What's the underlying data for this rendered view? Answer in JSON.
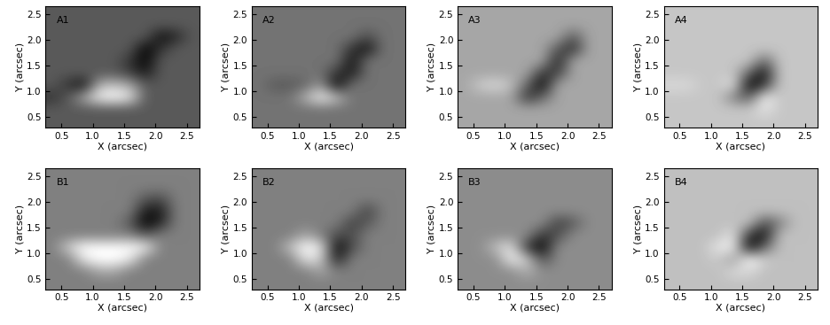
{
  "chart_data": [
    {
      "type": "heatmap",
      "title": "A1",
      "x_label": "X (arcsec)",
      "y_label": "Y (arcsec)",
      "xlim": [
        0.25,
        2.7
      ],
      "ylim": [
        0.3,
        2.65
      ],
      "xticks": [
        0.5,
        1.0,
        1.5,
        2.0,
        2.5
      ],
      "yticks": [
        0.5,
        1.0,
        1.5,
        2.0,
        2.5
      ],
      "color": "gray",
      "color_range": [
        -1,
        1
      ],
      "cells": [
        [
          -0.3,
          -0.3,
          -0.3,
          -0.3,
          -0.3,
          -0.3,
          -0.3,
          -0.3,
          -0.3,
          -0.3
        ],
        [
          -0.3,
          -0.3,
          -0.3,
          -0.3,
          -0.3,
          -0.3,
          -0.3,
          -0.3,
          -0.3,
          -0.3
        ],
        [
          -0.3,
          -0.3,
          -0.3,
          -0.3,
          -0.3,
          -0.3,
          -0.3,
          -0.9,
          -0.7,
          -0.3
        ],
        [
          -0.3,
          -0.3,
          -0.3,
          -0.3,
          -0.3,
          -0.3,
          -1,
          -0.6,
          -0.3,
          -0.3
        ],
        [
          -0.3,
          -0.3,
          -0.3,
          -0.3,
          -0.3,
          -0.6,
          -1,
          -0.3,
          -0.3,
          -0.3
        ],
        [
          -0.3,
          -0.3,
          -0.3,
          -0.3,
          -0.3,
          -0.5,
          -0.8,
          -0.3,
          -0.3,
          -0.3
        ],
        [
          -0.3,
          -0.6,
          -0.9,
          0.4,
          0.5,
          0.3,
          -0.3,
          -0.3,
          -0.3,
          -0.3
        ],
        [
          -0.6,
          -0.3,
          0.3,
          0.9,
          1,
          0.8,
          -0.3,
          -0.3,
          -0.3,
          -0.3
        ],
        [
          -0.3,
          -0.3,
          -0.3,
          -0.3,
          -0.3,
          -0.3,
          -0.3,
          -0.3,
          -0.3,
          -0.3
        ],
        [
          -0.3,
          -0.3,
          -0.3,
          -0.3,
          -0.3,
          -0.3,
          -0.3,
          -0.3,
          -0.3,
          -0.3
        ]
      ]
    },
    {
      "type": "heatmap",
      "title": "A2",
      "x_label": "X (arcsec)",
      "y_label": "Y (arcsec)",
      "xlim": [
        0.25,
        2.7
      ],
      "ylim": [
        0.3,
        2.65
      ],
      "xticks": [
        0.5,
        1.0,
        1.5,
        2.0,
        2.5
      ],
      "yticks": [
        0.5,
        1.0,
        1.5,
        2.0,
        2.5
      ],
      "color": "gray",
      "color_range": [
        -1,
        1
      ],
      "cells": [
        [
          -0.1,
          -0.1,
          -0.1,
          -0.1,
          -0.1,
          -0.1,
          -0.1,
          -0.1,
          -0.1,
          -0.1
        ],
        [
          -0.1,
          -0.1,
          -0.1,
          -0.1,
          -0.1,
          -0.1,
          -0.1,
          -0.1,
          -0.1,
          -0.1
        ],
        [
          -0.1,
          -0.1,
          -0.1,
          -0.1,
          -0.1,
          -0.1,
          -0.1,
          -0.4,
          -0.1,
          -0.1
        ],
        [
          -0.1,
          -0.1,
          -0.1,
          -0.1,
          -0.1,
          -0.1,
          -0.6,
          -0.9,
          -0.1,
          -0.1
        ],
        [
          -0.1,
          -0.1,
          -0.1,
          -0.1,
          -0.1,
          -0.1,
          -0.9,
          -0.1,
          -0.1,
          -0.1
        ],
        [
          -0.1,
          -0.1,
          -0.1,
          -0.1,
          -0.1,
          -0.6,
          -0.8,
          -0.1,
          -0.1,
          -0.1
        ],
        [
          -0.1,
          -0.3,
          -0.3,
          -0.2,
          0.2,
          -1,
          -0.1,
          -0.1,
          -0.1,
          -0.1
        ],
        [
          -0.1,
          -0.1,
          -0.1,
          0.4,
          0.9,
          0.5,
          -0.1,
          -0.1,
          -0.1,
          -0.1
        ],
        [
          -0.1,
          -0.1,
          -0.1,
          -0.1,
          -0.1,
          -0.1,
          -0.1,
          -0.1,
          -0.1,
          -0.1
        ],
        [
          -0.1,
          -0.1,
          -0.1,
          -0.1,
          -0.1,
          -0.1,
          -0.1,
          -0.1,
          -0.1,
          -0.1
        ]
      ]
    },
    {
      "type": "heatmap",
      "title": "A3",
      "x_label": "X (arcsec)",
      "y_label": "Y (arcsec)",
      "xlim": [
        0.25,
        2.7
      ],
      "ylim": [
        0.3,
        2.65
      ],
      "xticks": [
        0.5,
        1.0,
        1.5,
        2.0,
        2.5
      ],
      "yticks": [
        0.5,
        1.0,
        1.5,
        2.0,
        2.5
      ],
      "color": "gray",
      "color_range": [
        -1,
        1
      ],
      "cells": [
        [
          0.3,
          0.3,
          0.3,
          0.3,
          0.3,
          0.3,
          0.3,
          0.3,
          0.3,
          0.3
        ],
        [
          0.3,
          0.3,
          0.3,
          0.3,
          0.3,
          0.3,
          0.3,
          0.3,
          0.3,
          0.3
        ],
        [
          0.3,
          0.3,
          0.3,
          0.3,
          0.3,
          0.3,
          0.3,
          -0.3,
          0.3,
          0.3
        ],
        [
          0.3,
          0.3,
          0.3,
          0.3,
          0.3,
          0.3,
          -0.3,
          -0.7,
          0.3,
          0.3
        ],
        [
          0.3,
          0.3,
          0.3,
          0.3,
          0.3,
          0.3,
          -0.8,
          0.3,
          0.3,
          0.3
        ],
        [
          0.3,
          0.3,
          0.3,
          0.3,
          0.3,
          -0.6,
          -0.5,
          0.3,
          0.3,
          0.3
        ],
        [
          0.3,
          0.6,
          0.7,
          0.5,
          -0.2,
          -1,
          0.3,
          0.3,
          0.3,
          0.3
        ],
        [
          0.3,
          0.3,
          0.3,
          0.3,
          -0.6,
          -0.2,
          0.3,
          0.3,
          0.3,
          0.3
        ],
        [
          0.3,
          0.3,
          0.3,
          0.3,
          0.3,
          0.3,
          0.3,
          0.3,
          0.3,
          0.3
        ],
        [
          0.3,
          0.3,
          0.3,
          0.3,
          0.3,
          0.3,
          0.3,
          0.3,
          0.3,
          0.3
        ]
      ]
    },
    {
      "type": "heatmap",
      "title": "A4",
      "x_label": "X (arcsec)",
      "y_label": "Y (arcsec)",
      "xlim": [
        0.25,
        2.7
      ],
      "ylim": [
        0.3,
        2.65
      ],
      "xticks": [
        0.5,
        1.0,
        1.5,
        2.0,
        2.5
      ],
      "yticks": [
        0.5,
        1.0,
        1.5,
        2.0,
        2.5
      ],
      "color": "gray",
      "color_range": [
        -1,
        1
      ],
      "cells": [
        [
          0.55,
          0.55,
          0.55,
          0.55,
          0.55,
          0.55,
          0.55,
          0.55,
          0.55,
          0.55
        ],
        [
          0.55,
          0.55,
          0.55,
          0.55,
          0.55,
          0.55,
          0.55,
          0.55,
          0.55,
          0.55
        ],
        [
          0.55,
          0.55,
          0.55,
          0.55,
          0.55,
          0.55,
          0.55,
          0.55,
          0.55,
          0.55
        ],
        [
          0.55,
          0.55,
          0.55,
          0.55,
          0.55,
          0.55,
          0.55,
          0.55,
          0.55,
          0.55
        ],
        [
          0.55,
          0.55,
          0.55,
          0.55,
          0.55,
          0.55,
          -0.2,
          0.55,
          0.55,
          0.55
        ],
        [
          0.55,
          0.55,
          0.55,
          0.55,
          0.55,
          -0.2,
          -0.9,
          0.55,
          0.55,
          0.55
        ],
        [
          0.7,
          0.7,
          0.55,
          0.55,
          0.8,
          -1,
          -0.6,
          0.55,
          0.55,
          0.55
        ],
        [
          0.55,
          0.55,
          0.55,
          0.55,
          0.0,
          -0.3,
          0.9,
          0.55,
          0.55,
          0.55
        ],
        [
          0.55,
          0.55,
          0.55,
          0.55,
          0.55,
          0.55,
          0.8,
          0.55,
          0.55,
          0.55
        ],
        [
          0.55,
          0.55,
          0.55,
          0.55,
          0.55,
          0.55,
          0.55,
          0.55,
          0.55,
          0.55
        ]
      ]
    },
    {
      "type": "heatmap",
      "title": "B1",
      "x_label": "X (arcsec)",
      "y_label": "Y (arcsec)",
      "xlim": [
        0.25,
        2.7
      ],
      "ylim": [
        0.3,
        2.65
      ],
      "xticks": [
        0.5,
        1.0,
        1.5,
        2.0,
        2.5
      ],
      "yticks": [
        0.5,
        1.0,
        1.5,
        2.0,
        2.5
      ],
      "color": "gray",
      "color_range": [
        -1,
        1
      ],
      "cells": [
        [
          0,
          0,
          0,
          0,
          0,
          0,
          0,
          0,
          0,
          0
        ],
        [
          0,
          0,
          0,
          0,
          0,
          0,
          0,
          0,
          0,
          0
        ],
        [
          0,
          0,
          0,
          0,
          0,
          0,
          -0.3,
          -0.4,
          0,
          0
        ],
        [
          0,
          0,
          0,
          0,
          0,
          0,
          -0.8,
          -0.8,
          0,
          0
        ],
        [
          0,
          0,
          0,
          0,
          0,
          -0.3,
          -1,
          -0.7,
          0,
          0
        ],
        [
          0,
          0,
          0,
          0,
          0,
          0,
          -0.3,
          0,
          0,
          0
        ],
        [
          0,
          0.6,
          1,
          1,
          1,
          1,
          0.9,
          0,
          0,
          0
        ],
        [
          0,
          0,
          0.8,
          1,
          1,
          0.8,
          0,
          0,
          0,
          0
        ],
        [
          0,
          0,
          0,
          0.3,
          0.3,
          0,
          0,
          0,
          0,
          0
        ],
        [
          0,
          0,
          0,
          0,
          0,
          0,
          0,
          0,
          0,
          0
        ]
      ]
    },
    {
      "type": "heatmap",
      "title": "B2",
      "x_label": "X (arcsec)",
      "y_label": "Y (arcsec)",
      "xlim": [
        0.25,
        2.7
      ],
      "ylim": [
        0.3,
        2.65
      ],
      "xticks": [
        0.5,
        1.0,
        1.5,
        2.0,
        2.5
      ],
      "yticks": [
        0.5,
        1.0,
        1.5,
        2.0,
        2.5
      ],
      "color": "gray",
      "color_range": [
        -1,
        1
      ],
      "cells": [
        [
          0,
          0,
          0,
          0,
          0,
          0,
          0,
          0,
          0,
          0
        ],
        [
          0,
          0,
          0,
          0,
          0,
          0,
          0,
          0,
          0,
          0
        ],
        [
          0,
          0,
          0,
          0,
          0,
          0,
          0,
          0,
          0,
          0
        ],
        [
          0,
          0,
          0,
          0,
          0,
          0,
          0,
          -0.5,
          0,
          0
        ],
        [
          0,
          0,
          0,
          0,
          0,
          0,
          -0.5,
          -0.3,
          0,
          0
        ],
        [
          0,
          0,
          0,
          0.3,
          0,
          -0.4,
          -0.4,
          0,
          0,
          0
        ],
        [
          0,
          0,
          0.5,
          1,
          0.8,
          -1,
          -0.4,
          0,
          0,
          0
        ],
        [
          0,
          0,
          0,
          0.8,
          0.6,
          -0.8,
          0,
          0,
          0,
          0
        ],
        [
          0,
          0,
          0,
          0,
          0.3,
          0,
          0,
          0,
          0,
          0
        ],
        [
          0,
          0,
          0,
          0,
          0,
          0,
          0,
          0,
          0,
          0
        ]
      ]
    },
    {
      "type": "heatmap",
      "title": "B3",
      "x_label": "X (arcsec)",
      "y_label": "Y (arcsec)",
      "xlim": [
        0.25,
        2.7
      ],
      "ylim": [
        0.3,
        2.65
      ],
      "xticks": [
        0.5,
        1.0,
        1.5,
        2.0,
        2.5
      ],
      "yticks": [
        0.5,
        1.0,
        1.5,
        2.0,
        2.5
      ],
      "color": "gray",
      "color_range": [
        -1,
        1
      ],
      "cells": [
        [
          0.1,
          0.1,
          0.1,
          0.1,
          0.1,
          0.1,
          0.1,
          0.1,
          0.1,
          0.1
        ],
        [
          0.1,
          0.1,
          0.1,
          0.1,
          0.1,
          0.1,
          0.1,
          0.1,
          0.1,
          0.1
        ],
        [
          0.1,
          0.1,
          0.1,
          0.1,
          0.1,
          0.1,
          0.1,
          0.1,
          0.1,
          0.1
        ],
        [
          0.1,
          0.1,
          0.1,
          0.1,
          0.1,
          0.1,
          0.1,
          0.1,
          0.1,
          0.1
        ],
        [
          0.1,
          0.1,
          0.1,
          0.1,
          0.1,
          0.1,
          -0.5,
          -0.3,
          0.1,
          0.1
        ],
        [
          0.1,
          0.1,
          0.1,
          0.1,
          0.1,
          -0.6,
          -0.4,
          0.1,
          0.1,
          0.1
        ],
        [
          0.1,
          0.1,
          0.5,
          0.8,
          -0.6,
          -1,
          0.1,
          0.1,
          0.1,
          0.1
        ],
        [
          0.1,
          0.1,
          0.1,
          0.9,
          0.6,
          -0.4,
          0.1,
          0.1,
          0.1,
          0.1
        ],
        [
          0.1,
          0.1,
          0.1,
          0.1,
          0.4,
          0.1,
          0.1,
          0.1,
          0.1,
          0.1
        ],
        [
          0.1,
          0.1,
          0.1,
          0.1,
          0.1,
          0.1,
          0.1,
          0.1,
          0.1,
          0.1
        ]
      ]
    },
    {
      "type": "heatmap",
      "title": "B4",
      "x_label": "X (arcsec)",
      "y_label": "Y (arcsec)",
      "xlim": [
        0.25,
        2.7
      ],
      "ylim": [
        0.3,
        2.65
      ],
      "xticks": [
        0.5,
        1.0,
        1.5,
        2.0,
        2.5
      ],
      "yticks": [
        0.5,
        1.0,
        1.5,
        2.0,
        2.5
      ],
      "color": "gray",
      "color_range": [
        -1,
        1
      ],
      "cells": [
        [
          0.5,
          0.5,
          0.5,
          0.5,
          0.5,
          0.5,
          0.5,
          0.5,
          0.5,
          0.5
        ],
        [
          0.5,
          0.5,
          0.5,
          0.5,
          0.5,
          0.5,
          0.5,
          0.5,
          0.5,
          0.5
        ],
        [
          0.5,
          0.5,
          0.5,
          0.5,
          0.5,
          0.5,
          0.5,
          0.5,
          0.5,
          0.5
        ],
        [
          0.5,
          0.5,
          0.5,
          0.5,
          0.5,
          0.5,
          0.5,
          0.5,
          0.5,
          0.5
        ],
        [
          0.5,
          0.5,
          0.5,
          0.5,
          0.5,
          0.5,
          -0.4,
          0.0,
          0.5,
          0.5
        ],
        [
          0.5,
          0.5,
          0.5,
          0.5,
          0.8,
          -0.6,
          -0.9,
          0.5,
          0.5,
          0.5
        ],
        [
          0.5,
          0.5,
          0.5,
          0.8,
          0.9,
          -1,
          -0.2,
          0.5,
          0.5,
          0.5
        ],
        [
          0.5,
          0.5,
          0.5,
          0.6,
          0.2,
          1,
          0.6,
          0.5,
          0.5,
          0.5
        ],
        [
          0.5,
          0.5,
          0.5,
          0.5,
          0.7,
          0.7,
          0.5,
          0.5,
          0.5,
          0.5
        ],
        [
          0.5,
          0.5,
          0.5,
          0.5,
          0.5,
          0.5,
          0.5,
          0.5,
          0.5,
          0.5
        ]
      ]
    }
  ]
}
